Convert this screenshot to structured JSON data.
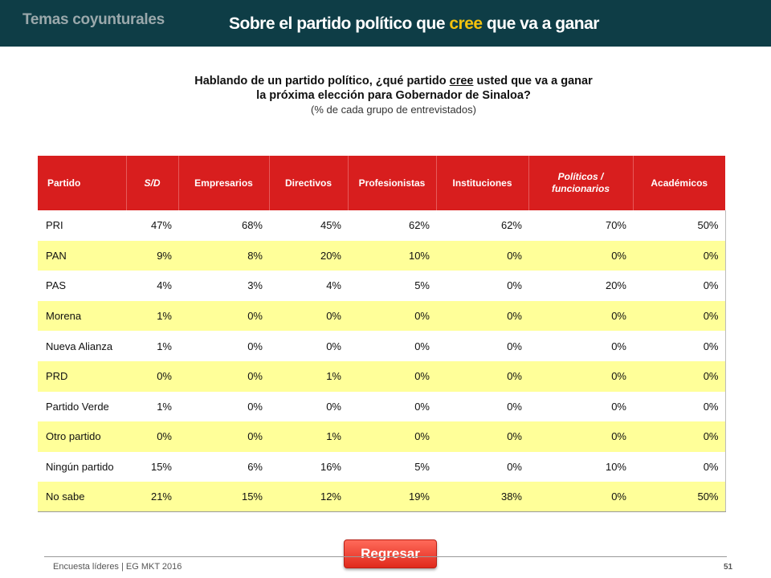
{
  "header": {
    "section": "Temas coyunturales",
    "title_before": "Sobre el partido político que ",
    "title_highlight": "cree",
    "title_after": " que va a ganar",
    "background": "#0e3d46",
    "highlight_color": "#f4c20d"
  },
  "question": {
    "line1_before": "Hablando de un partido político, ¿qué partido ",
    "line1_underlined": "cree",
    "line1_after": " usted que va a ganar",
    "line2": "la próxima elección para Gobernador de Sinaloa?",
    "subtitle": "(% de cada grupo de entrevistados)"
  },
  "table": {
    "header_color": "#d81e1e",
    "stripe_color": "#ffff99",
    "columns": [
      "Partido",
      "S/D",
      "Empresarios",
      "Directivos",
      "Profesionistas",
      "Instituciones",
      "Políticos / funcionarios",
      "Académicos"
    ],
    "rows": [
      [
        "PRI",
        "47%",
        "68%",
        "45%",
        "62%",
        "62%",
        "70%",
        "50%"
      ],
      [
        "PAN",
        "9%",
        "8%",
        "20%",
        "10%",
        "0%",
        "0%",
        "0%"
      ],
      [
        "PAS",
        "4%",
        "3%",
        "4%",
        "5%",
        "0%",
        "20%",
        "0%"
      ],
      [
        "Morena",
        "1%",
        "0%",
        "0%",
        "0%",
        "0%",
        "0%",
        "0%"
      ],
      [
        "Nueva Alianza",
        "1%",
        "0%",
        "0%",
        "0%",
        "0%",
        "0%",
        "0%"
      ],
      [
        "PRD",
        "0%",
        "0%",
        "1%",
        "0%",
        "0%",
        "0%",
        "0%"
      ],
      [
        "Partido Verde",
        "1%",
        "0%",
        "0%",
        "0%",
        "0%",
        "0%",
        "0%"
      ],
      [
        "Otro partido",
        "0%",
        "0%",
        "1%",
        "0%",
        "0%",
        "0%",
        "0%"
      ],
      [
        "Ningún partido",
        "15%",
        "6%",
        "16%",
        "5%",
        "0%",
        "10%",
        "0%"
      ],
      [
        "No sabe",
        "21%",
        "15%",
        "12%",
        "19%",
        "38%",
        "0%",
        "50%"
      ]
    ]
  },
  "back_button": {
    "label": "Regresar"
  },
  "footer": {
    "text": "Encuesta líderes | EG MKT 2016",
    "page_number": "51"
  }
}
